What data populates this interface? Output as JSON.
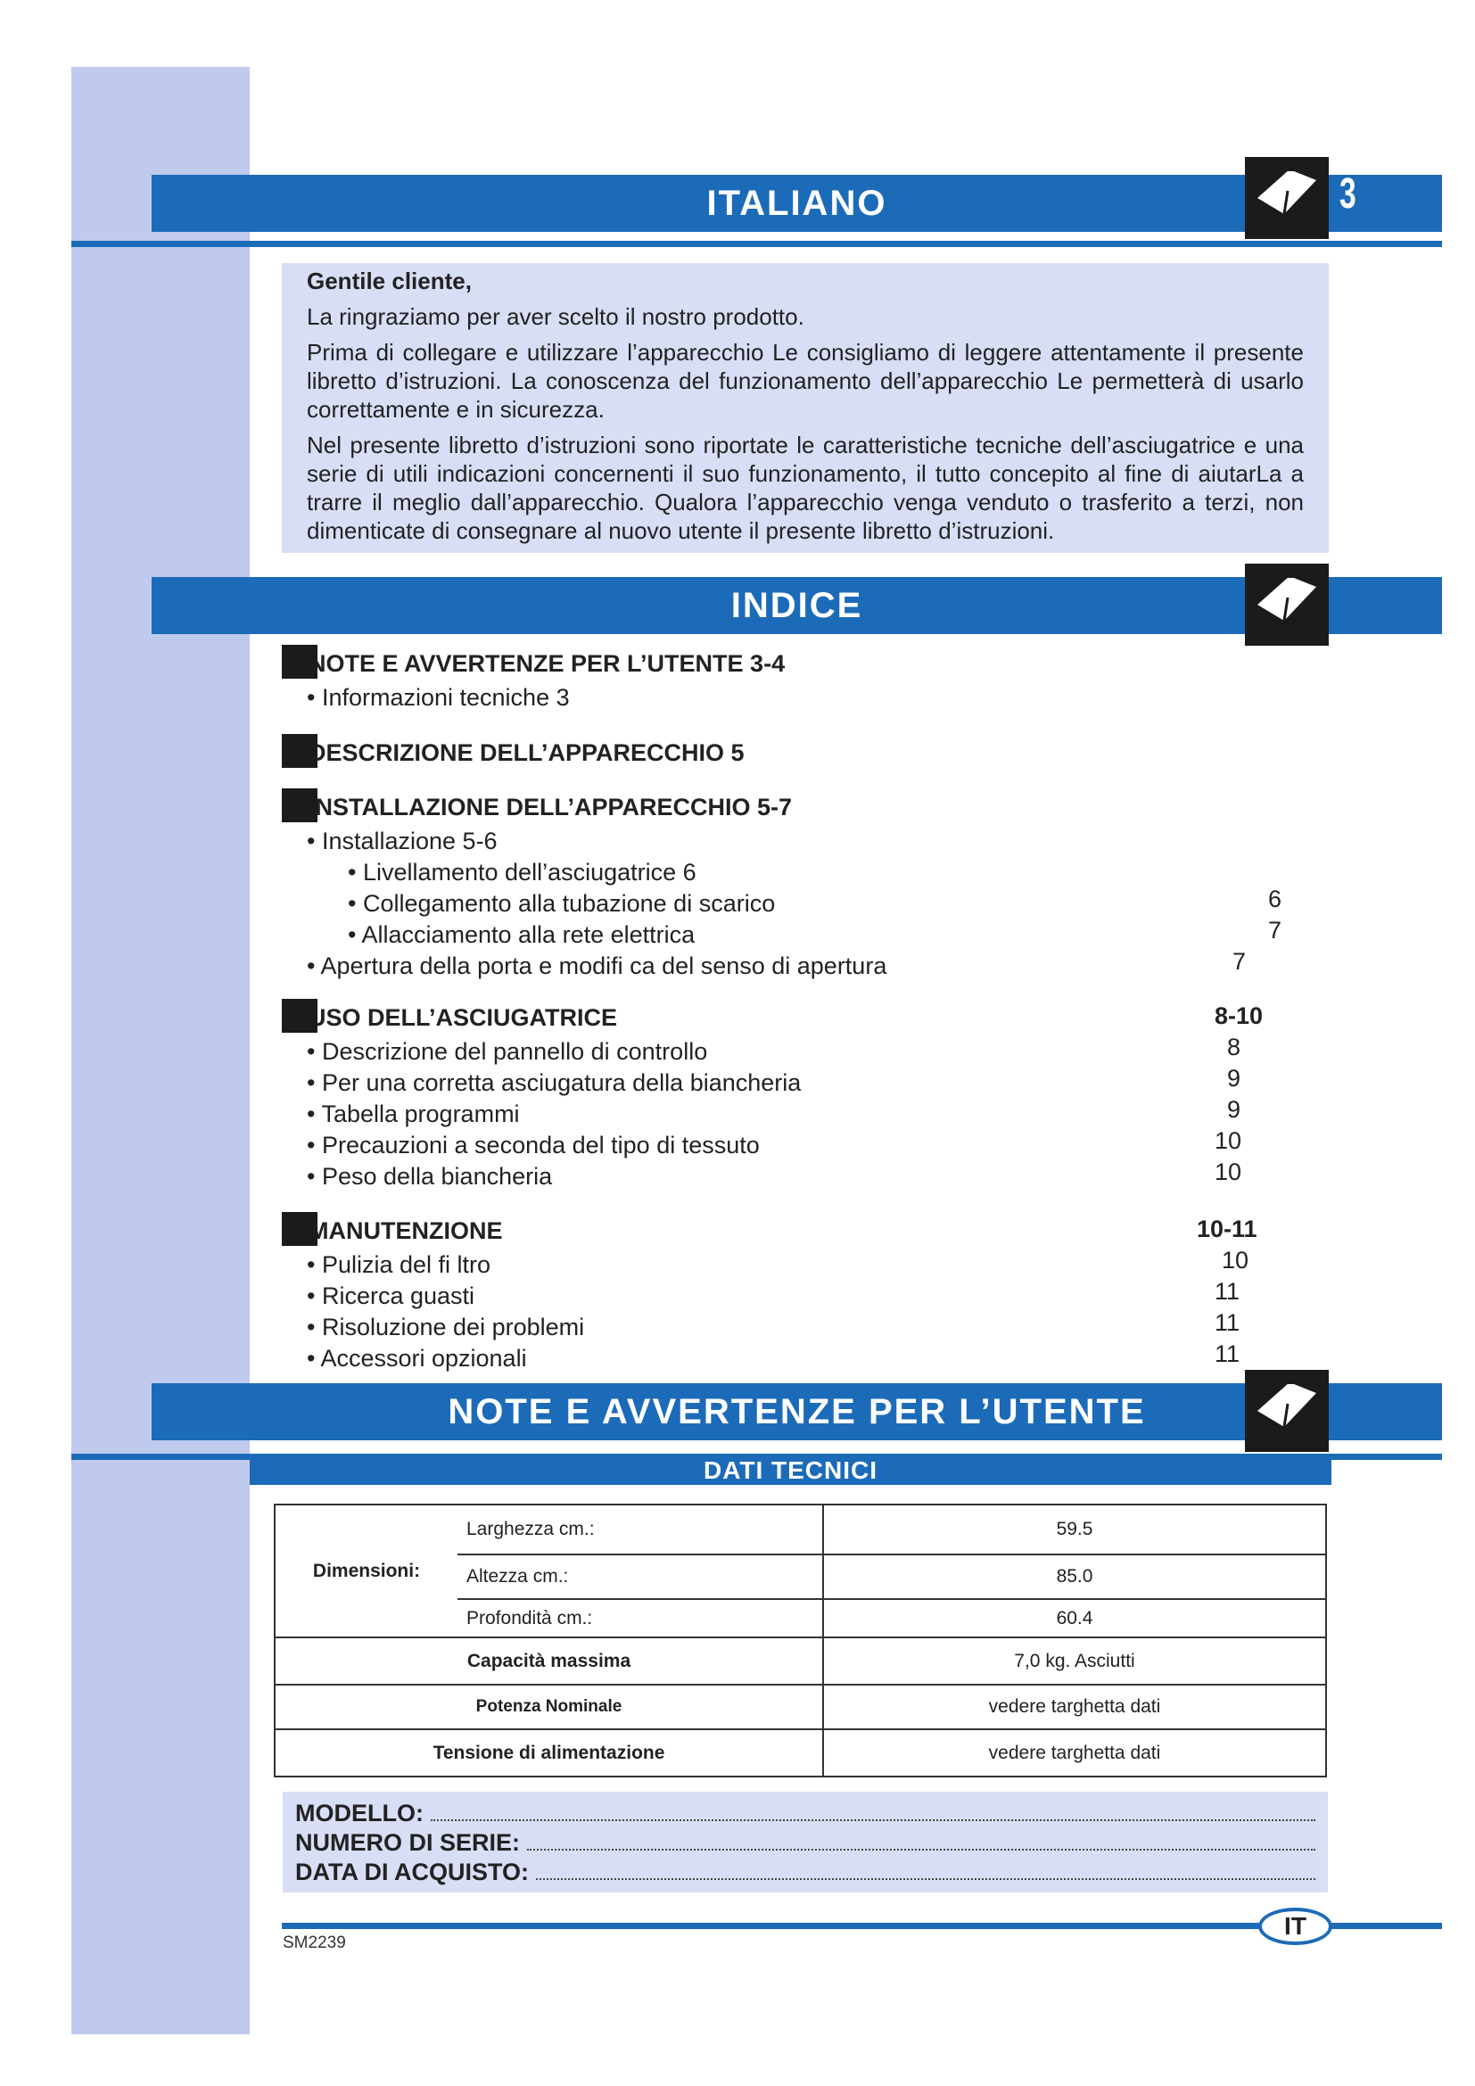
{
  "page_number": "3",
  "headers": {
    "italiano": "ITALIANO",
    "indice": "INDICE",
    "note": "NOTE E AVVERTENZE PER L’UTENTE",
    "dati": "DATI TECNICI"
  },
  "intro": {
    "greeting": "Gentile cliente,",
    "p1": "La ringraziamo per aver scelto il nostro prodotto.",
    "p2": "Prima di collegare e utilizzare l’apparecchio Le consigliamo di leggere attentamente il presente libretto d’istruzioni. La conoscenza del funzionamento dell’apparecchio Le permetterà di usarlo correttamente e in sicurezza.",
    "p3": "Nel presente libretto d’istruzioni sono riportate le caratteristiche tecniche dell’asciugatrice e una serie di utili indicazioni concernenti il suo funzionamento, il tutto concepito al fine di aiutarLa a trarre il meglio dall’apparecchio. Qualora l’apparecchio venga venduto o trasferito a terzi, non dimenticate di consegnare al nuovo utente il presente libretto d’istruzioni."
  },
  "toc": {
    "s1": {
      "title": "NOTE E AVVERTENZE PER L’UTENTE  3-4",
      "items": [
        "•  Informazioni tecniche  3"
      ]
    },
    "s2": {
      "title": "DESCRIZIONE DELL’APPARECCHIO  5"
    },
    "s3": {
      "title": "INSTALLAZIONE DELL’APPARECCHIO  5-7",
      "items": [
        "•  Installazione   5-6",
        "•  Livellamento dell’asciugatrice  6",
        "•  Collegamento alla tubazione di scarico",
        "•  Allacciamento alla rete elettrica",
        "•  Apertura della porta e modifi ca del senso di apertura"
      ],
      "pages": [
        "6",
        "7",
        "7"
      ]
    },
    "s4": {
      "title": "USO DELL’ASCIUGATRICE",
      "page": "8-10",
      "items": [
        "•  Descrizione del pannello di controllo",
        "•  Per una corretta asciugatura della biancheria",
        "•  Tabella programmi",
        "•  Precauzioni a seconda del tipo di tessuto",
        "•  Peso della biancheria"
      ],
      "pages": [
        "8",
        "9",
        "9",
        "10",
        "10"
      ]
    },
    "s5": {
      "title": "MANUTENZIONE",
      "page": "10-11",
      "items": [
        "•  Pulizia del fi ltro",
        "•  Ricerca guasti",
        "•  Risoluzione dei problemi",
        "•  Accessori opzionali"
      ],
      "pages": [
        "10",
        "11",
        "11",
        "11"
      ]
    }
  },
  "specs": {
    "dimensioni": "Dimensioni:",
    "rows": [
      {
        "label": "Larghezza cm.:",
        "value": "59.5"
      },
      {
        "label": "Altezza cm.:",
        "value": "85.0"
      },
      {
        "label": "Profondità cm.:",
        "value": "60.4"
      }
    ],
    "capacita": {
      "label": "Capacità massima",
      "value": "7,0 kg. Asciutti"
    },
    "potenza": {
      "label": "Potenza Nominale",
      "value": "vedere targhetta dati"
    },
    "tensione": {
      "label": "Tensione di alimentazione",
      "value": "vedere targhetta dati"
    }
  },
  "model": {
    "modello": "MODELLO:",
    "serie": "NUMERO DI SERIE:",
    "data": "DATA DI ACQUISTO:"
  },
  "footer": {
    "code": "SM2239",
    "lang": "IT"
  },
  "colors": {
    "accent": "#1c6bb8",
    "sidebar": "#bfcaee",
    "box": "#d8def5"
  }
}
